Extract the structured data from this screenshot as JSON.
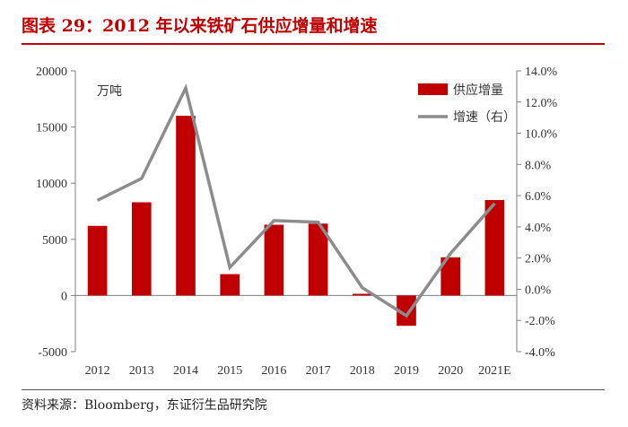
{
  "header": {
    "title": "图表 29：2012 年以来铁矿石供应增量和增速"
  },
  "footer": {
    "source": "资料来源：Bloomberg，东证衍生品研究院"
  },
  "chart_data": {
    "type": "bar+line",
    "unit_label": "万吨",
    "categories": [
      "2012",
      "2013",
      "2014",
      "2015",
      "2016",
      "2017",
      "2018",
      "2019",
      "2020",
      "2021E"
    ],
    "series": [
      {
        "name": "供应增量",
        "type": "bar",
        "axis": "left",
        "color": "#c00000",
        "values": [
          6200,
          8300,
          16000,
          1900,
          6300,
          6400,
          150,
          -2700,
          3400,
          8500
        ]
      },
      {
        "name": "增速（右）",
        "type": "line",
        "axis": "right",
        "color": "#8c8c8c",
        "values": [
          5.7,
          7.1,
          12.9,
          1.4,
          4.4,
          4.3,
          0.1,
          -1.7,
          2.3,
          5.5
        ]
      }
    ],
    "y_left": {
      "min": -5000,
      "max": 20000,
      "ticks": [
        -5000,
        0,
        5000,
        10000,
        15000,
        20000
      ],
      "tick_labels": [
        "-5000",
        "0",
        "5000",
        "10000",
        "15000",
        "20000"
      ]
    },
    "y_right": {
      "min": -4,
      "max": 14,
      "ticks": [
        -4,
        -2,
        0,
        2,
        4,
        6,
        8,
        10,
        12,
        14
      ],
      "tick_labels": [
        "-4.0%",
        "-2.0%",
        "0.0%",
        "2.0%",
        "4.0%",
        "6.0%",
        "8.0%",
        "10.0%",
        "12.0%",
        "14.0%"
      ]
    },
    "legend": {
      "position": "top-right"
    },
    "grid": false
  }
}
